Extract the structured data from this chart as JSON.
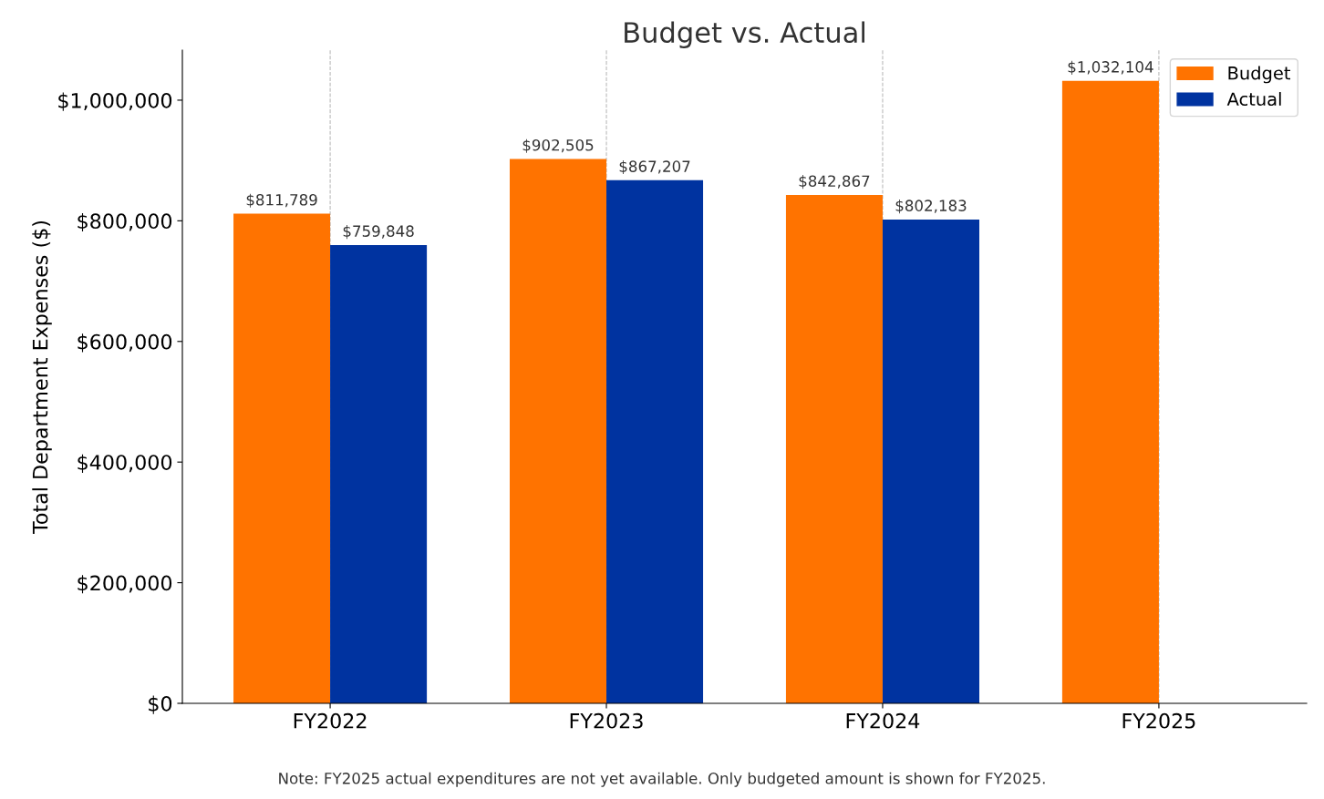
{
  "chart_data": {
    "type": "bar",
    "title": "Budget vs. Actual",
    "ylabel": "Total Department Expenses ($)",
    "categories": [
      "FY2022",
      "FY2023",
      "FY2024",
      "FY2025"
    ],
    "series": [
      {
        "name": "Budget",
        "color": "#ff7300",
        "values": [
          811789,
          902505,
          842867,
          1032104
        ],
        "value_labels": [
          "$811,789",
          "$902,505",
          "$842,867",
          "$1,032,104"
        ]
      },
      {
        "name": "Actual",
        "color": "#0033a0",
        "values": [
          759848,
          867207,
          802183,
          null
        ],
        "value_labels": [
          "$759,848",
          "$867,207",
          "$802,183",
          null
        ]
      }
    ],
    "ylim": [
      0,
      1083000
    ],
    "yticks": [
      {
        "value": 0,
        "label": "$0"
      },
      {
        "value": 200000,
        "label": "$200,000"
      },
      {
        "value": 400000,
        "label": "$400,000"
      },
      {
        "value": 600000,
        "label": "$600,000"
      },
      {
        "value": 800000,
        "label": "$800,000"
      },
      {
        "value": 1000000,
        "label": "$1,000,000"
      }
    ],
    "grid": "x",
    "legend": "top right",
    "annotations": [
      "Note: FY2025 actual expenditures are not yet available. Only budgeted amount is shown for FY2025."
    ]
  }
}
